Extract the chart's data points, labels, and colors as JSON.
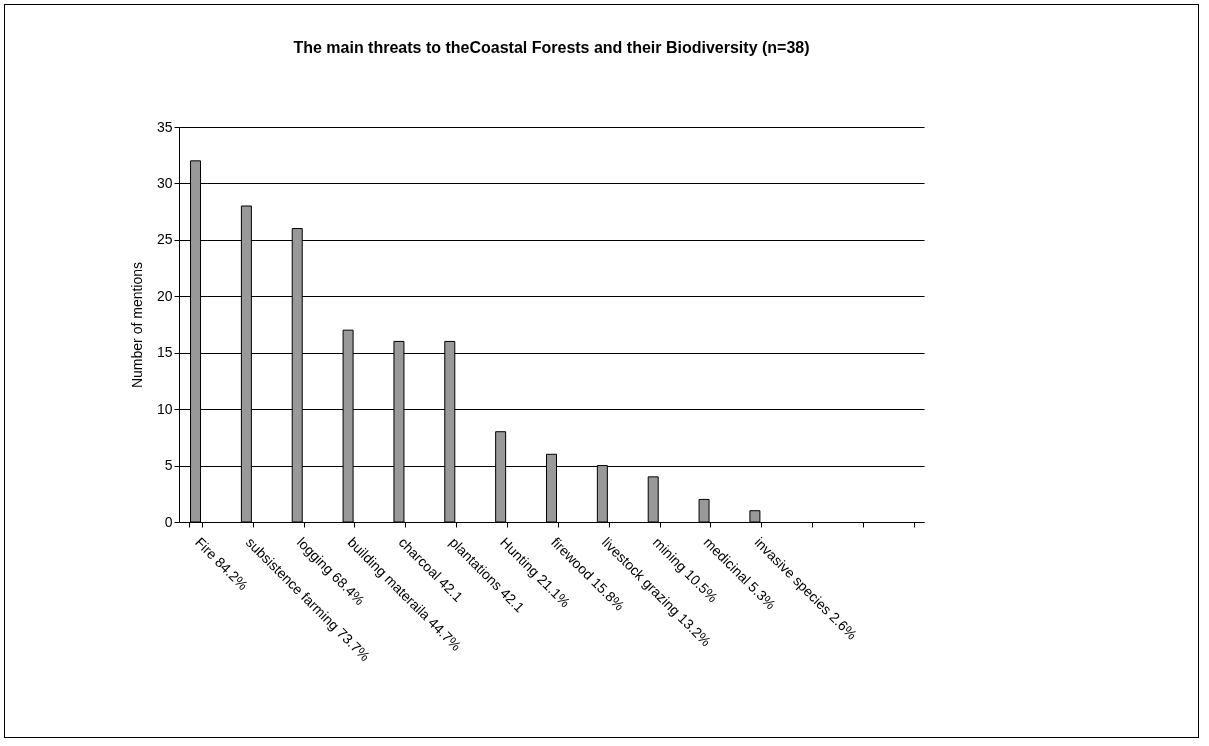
{
  "chart_data": {
    "type": "bar",
    "title": "The main threats to theCoastal Forests and their Biodiversity (n=38)",
    "ylabel": "Number of mentions",
    "categories": [
      "Fire 84.2%",
      "subsistence farming 73.7%",
      "logging 68.4%",
      "building materaila 44.7%",
      "charcoal 42.1",
      "plantations 42.1",
      "Hunting 21.1%",
      "firewood 15.8%",
      "livestock grazing 13.2%",
      "mining 10.5%",
      "medicinal 5.3%",
      "invasive species 2.6%",
      null,
      null,
      null
    ],
    "values": [
      32,
      28,
      26,
      17,
      16,
      16,
      8,
      6,
      5,
      4,
      2,
      1,
      null,
      null,
      null
    ],
    "color": "#999999",
    "ylim": [
      0,
      35
    ],
    "yticks": [
      0,
      5,
      10,
      15,
      20,
      25,
      30,
      35
    ],
    "grid": "y"
  }
}
